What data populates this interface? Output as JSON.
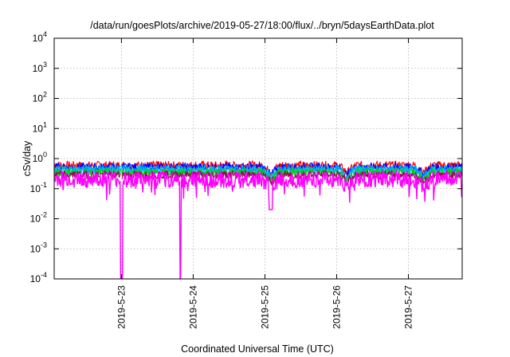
{
  "chart_data": {
    "type": "line",
    "title": "/data/run/goesPlots/archive/2019-05-27/18:00/flux/../bryn/5daysEarthData.plot",
    "xlabel": "Coordinated Universal Time (UTC)",
    "ylabel": "cSv/day",
    "y_scale": "log",
    "ylim": [
      0.0001,
      10000
    ],
    "xlim": [
      "2019-05-22 01:30",
      "2019-05-27 18:00"
    ],
    "y_ticks": [
      {
        "value": 0.0001,
        "base": "10",
        "exp": "-4"
      },
      {
        "value": 0.001,
        "base": "10",
        "exp": "-3"
      },
      {
        "value": 0.01,
        "base": "10",
        "exp": "-2"
      },
      {
        "value": 0.1,
        "base": "10",
        "exp": "-1"
      },
      {
        "value": 1,
        "base": "10",
        "exp": "0"
      },
      {
        "value": 10,
        "base": "10",
        "exp": "1"
      },
      {
        "value": 100,
        "base": "10",
        "exp": "2"
      },
      {
        "value": 1000,
        "base": "10",
        "exp": "3"
      },
      {
        "value": 10000,
        "base": "10",
        "exp": "4"
      }
    ],
    "x_ticks": [
      "2019-5-23",
      "2019-5-24",
      "2019-5-25",
      "2019-5-26",
      "2019-5-27"
    ],
    "grid": true,
    "data_gaps": [
      [
        "2019-05-22 23:55",
        "2019-05-23 00:05"
      ]
    ],
    "dropouts": [
      "2019-05-22 23:45",
      "2019-05-23 00:10",
      "2019-05-23 19:40"
    ],
    "series": [
      {
        "color": "#ff0000",
        "level": 0.6
      },
      {
        "color": "#0000ff",
        "level": 0.52
      },
      {
        "color": "#00a0ff",
        "level": 0.45
      },
      {
        "color": "#00c8c8",
        "level": 0.39
      },
      {
        "color": "#00d000",
        "level": 0.34
      },
      {
        "color": "#a00060",
        "level": 0.29
      },
      {
        "color": "#ff00ff",
        "level": 0.2
      }
    ]
  }
}
